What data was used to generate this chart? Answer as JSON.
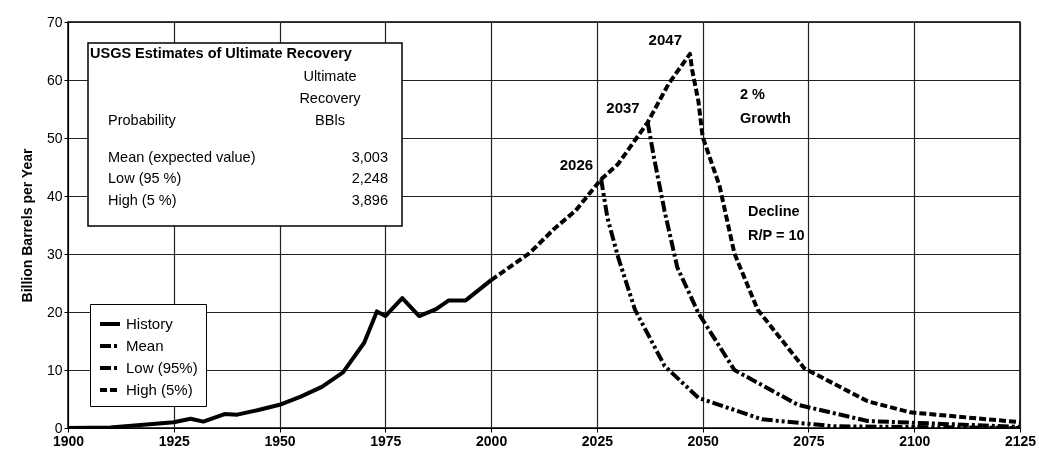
{
  "chart_data": {
    "type": "line",
    "ylabel": "Billion Barrels per Year",
    "xlim": [
      1900,
      2125
    ],
    "xticks": [
      1900,
      1925,
      1950,
      1975,
      2000,
      2025,
      2050,
      2075,
      2100,
      2125
    ],
    "ylim": [
      0,
      70
    ],
    "yticks": [
      0,
      10,
      20,
      30,
      40,
      50,
      60,
      70
    ],
    "grid": true,
    "legend": "bottom left",
    "series": [
      {
        "name": "History",
        "color": "#000000",
        "line_style": "solid",
        "x": [
          1900,
          1910,
          1920,
          1925,
          1929,
          1932,
          1937,
          1940,
          1945,
          1950,
          1955,
          1960,
          1965,
          1970,
          1973,
          1975,
          1979,
          1983,
          1987,
          1990,
          1994,
          2000
        ],
        "values": [
          0,
          0.1,
          0.7,
          1.0,
          1.6,
          1.1,
          2.4,
          2.3,
          3.1,
          4.0,
          5.4,
          7.1,
          9.6,
          14.7,
          20.1,
          19.3,
          22.4,
          19.3,
          20.5,
          22.0,
          22.0,
          25.5
        ]
      },
      {
        "name": "Mean",
        "color": "#000000",
        "line_style": "dashdot",
        "x": [
          2037,
          2038.5,
          2041,
          2044,
          2049,
          2057.5,
          2072.5,
          2089,
          2125
        ],
        "values": [
          52.7,
          46.6,
          37.4,
          27.7,
          19.8,
          10,
          4,
          1.2,
          0.2
        ]
      },
      {
        "name": "Low (95%)",
        "color": "#000000",
        "line_style": "dashdotdot",
        "x": [
          2026,
          2027.5,
          2030,
          2034,
          2041,
          2049,
          2064,
          2081,
          2125
        ],
        "values": [
          42.9,
          36.2,
          29.5,
          20.4,
          10.7,
          5.2,
          1.5,
          0.3,
          0
        ]
      },
      {
        "name": "High (5%)",
        "color": "#000000",
        "line_style": "dashed",
        "x": [
          2000,
          2009,
          2015,
          2020,
          2026,
          2030,
          2037,
          2042,
          2047,
          2047.5,
          2049,
          2050,
          2054,
          2057.5,
          2063,
          2074,
          2089,
          2099,
          2125
        ],
        "values": [
          25.5,
          30.1,
          34.4,
          37.5,
          42.9,
          45.5,
          52.7,
          59.4,
          64.5,
          61.8,
          56.3,
          50.2,
          41.7,
          30.1,
          20.4,
          10.3,
          4.6,
          2.7,
          1
        ]
      }
    ],
    "annotations": [
      {
        "text": "2026",
        "x": 2026,
        "y": 42.9
      },
      {
        "text": "2037",
        "x": 2037,
        "y": 52.7
      },
      {
        "text": "2047",
        "x": 2047,
        "y": 64.5
      },
      "2 %",
      "Growth",
      "Decline",
      "R/P = 10",
      "USGS Estimates of Ultimate Recovery",
      "Ultimate",
      "Recovery",
      "Probability",
      "BBls",
      "Mean (expected value)",
      "3,003",
      "Low (95 %)",
      "2,248",
      "High (5 %)",
      "3,896"
    ]
  }
}
